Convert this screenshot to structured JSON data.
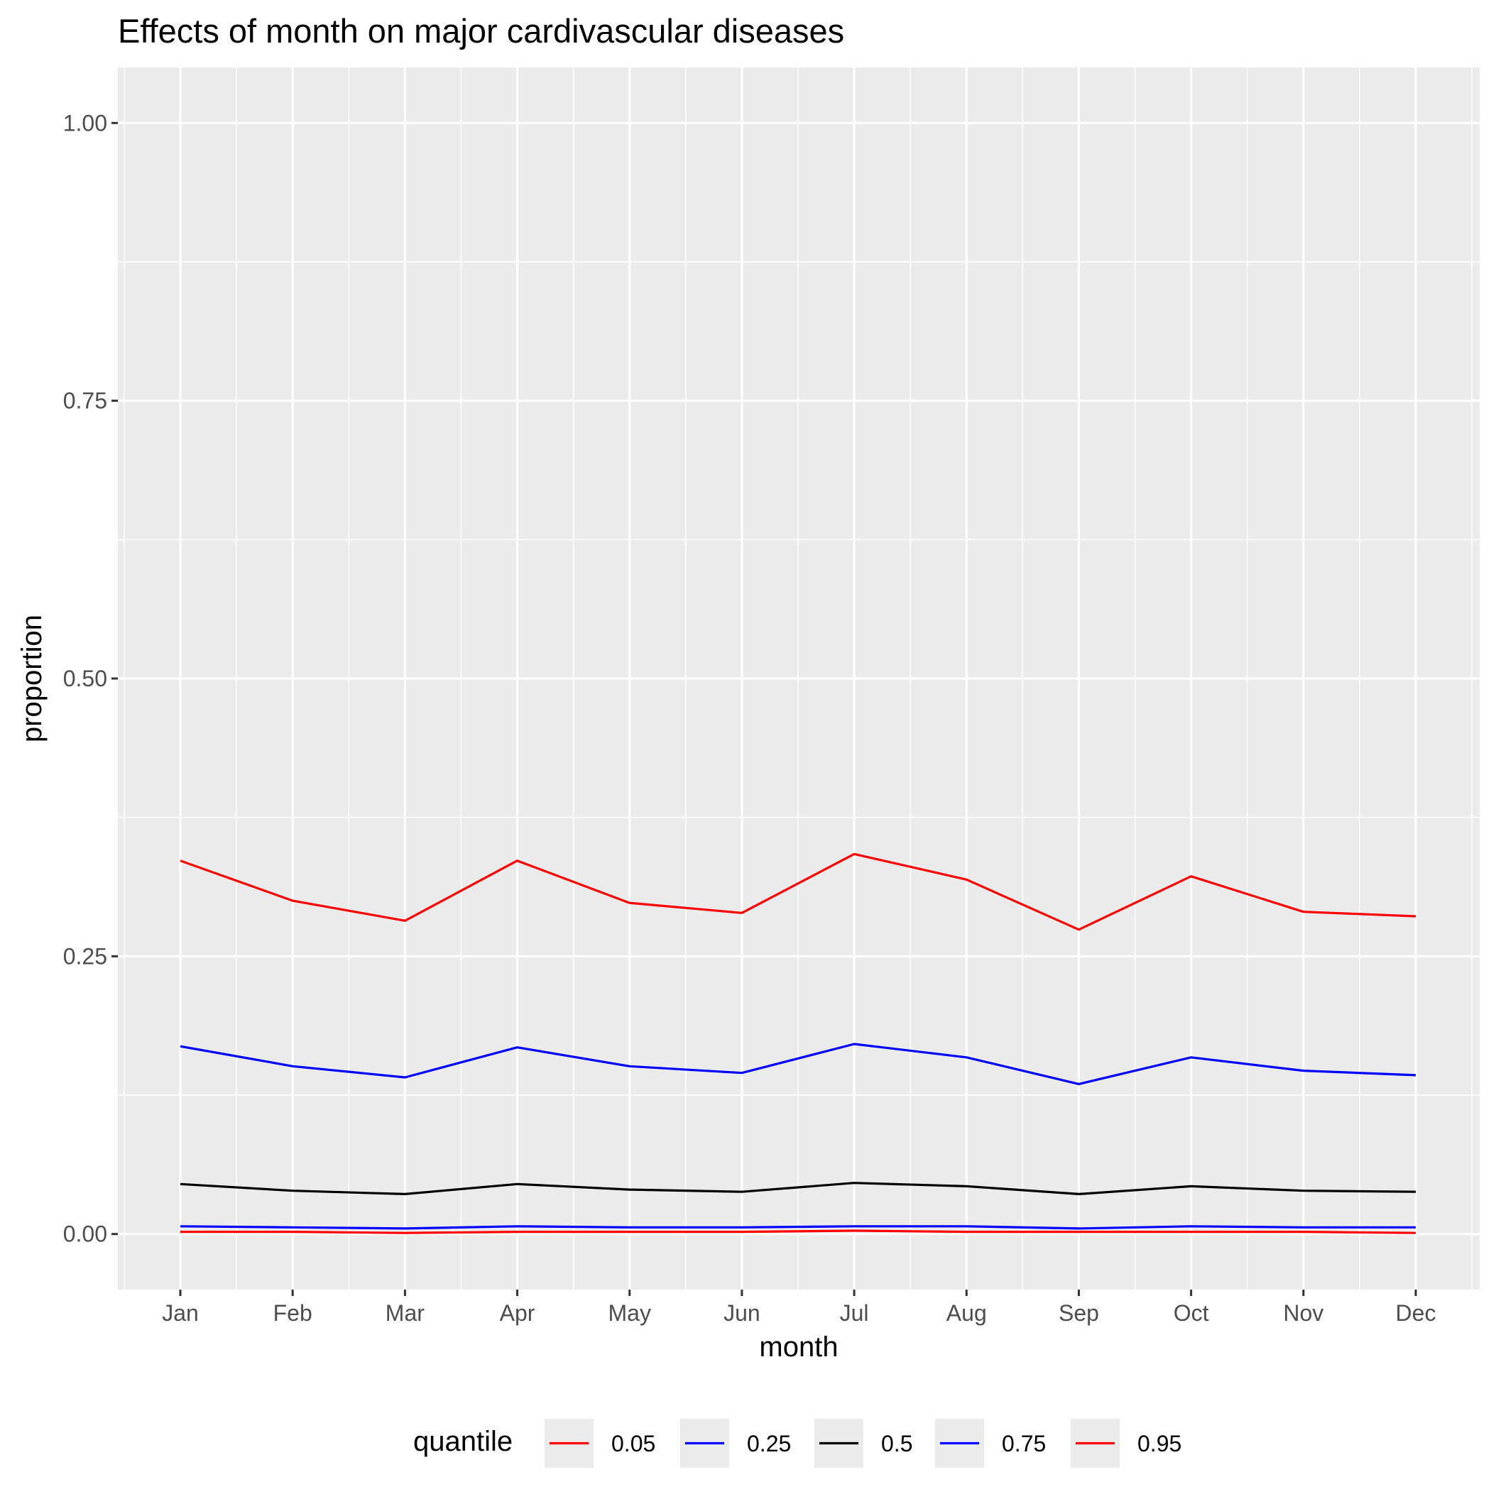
{
  "chart_data": {
    "type": "line",
    "title": "Effects of month on major cardivascular diseases",
    "xlabel": "month",
    "ylabel": "proportion",
    "categories": [
      "Jan",
      "Feb",
      "Mar",
      "Apr",
      "May",
      "Jun",
      "Jul",
      "Aug",
      "Sep",
      "Oct",
      "Nov",
      "Dec"
    ],
    "ylim": [
      -0.05,
      1.05
    ],
    "yticks": [
      0.0,
      0.25,
      0.5,
      0.75,
      1.0
    ],
    "ytick_labels": [
      "0.00",
      "0.25",
      "0.50",
      "0.75",
      "1.00"
    ],
    "grid": true,
    "legend_position": "bottom",
    "legend_title": "quantile",
    "series": [
      {
        "name": "0.05",
        "color": "#ff0000",
        "values": [
          0.002,
          0.002,
          0.001,
          0.002,
          0.002,
          0.002,
          0.003,
          0.002,
          0.002,
          0.002,
          0.002,
          0.001
        ]
      },
      {
        "name": "0.25",
        "color": "#0000ff",
        "values": [
          0.007,
          0.006,
          0.005,
          0.007,
          0.006,
          0.006,
          0.007,
          0.007,
          0.005,
          0.007,
          0.006,
          0.006
        ]
      },
      {
        "name": "0.5",
        "color": "#000000",
        "values": [
          0.045,
          0.039,
          0.036,
          0.045,
          0.04,
          0.038,
          0.046,
          0.043,
          0.036,
          0.043,
          0.039,
          0.038
        ]
      },
      {
        "name": "0.75",
        "color": "#0000ff",
        "values": [
          0.169,
          0.151,
          0.141,
          0.168,
          0.151,
          0.145,
          0.171,
          0.159,
          0.135,
          0.159,
          0.147,
          0.143
        ]
      },
      {
        "name": "0.95",
        "color": "#ff0000",
        "values": [
          0.336,
          0.3,
          0.282,
          0.336,
          0.298,
          0.289,
          0.342,
          0.319,
          0.274,
          0.322,
          0.29,
          0.286
        ]
      }
    ]
  }
}
